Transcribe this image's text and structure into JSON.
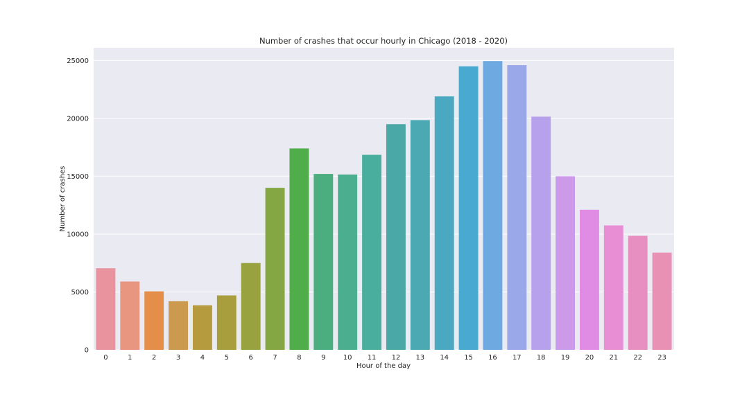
{
  "chart_data": {
    "type": "bar",
    "title": "Number of crashes that occur hourly in Chicago (2018 - 2020)",
    "xlabel": "Hour of the day",
    "ylabel": "Number of crashes",
    "categories": [
      "0",
      "1",
      "2",
      "3",
      "4",
      "5",
      "6",
      "7",
      "8",
      "9",
      "10",
      "11",
      "12",
      "13",
      "14",
      "15",
      "16",
      "17",
      "18",
      "19",
      "20",
      "21",
      "22",
      "23"
    ],
    "values": [
      7050,
      5900,
      5050,
      4200,
      3850,
      4700,
      7500,
      14000,
      17400,
      15200,
      15150,
      16850,
      19500,
      19850,
      21900,
      24500,
      24950,
      24600,
      20150,
      15000,
      12100,
      10750,
      9850,
      8400
    ],
    "colors": [
      "#e9939f",
      "#e8967f",
      "#e58e4a",
      "#cb9a4e",
      "#b59b3e",
      "#a99e3e",
      "#98a23f",
      "#84a743",
      "#4fae4a",
      "#4aae7e",
      "#4aae8f",
      "#4aae9e",
      "#4aa8a6",
      "#4aa9b3",
      "#4aa9c0",
      "#4aa9d1",
      "#6eaae1",
      "#9aa7e8",
      "#b7a1ec",
      "#cc9ae9",
      "#e08be4",
      "#e88ed5",
      "#e88fc2",
      "#e891b4"
    ],
    "yticks": [
      0,
      5000,
      10000,
      15000,
      20000,
      25000
    ],
    "ylim": [
      0,
      26100
    ],
    "grid": true,
    "background": "#eaeaf2",
    "gridcolor": "#ffffff"
  }
}
